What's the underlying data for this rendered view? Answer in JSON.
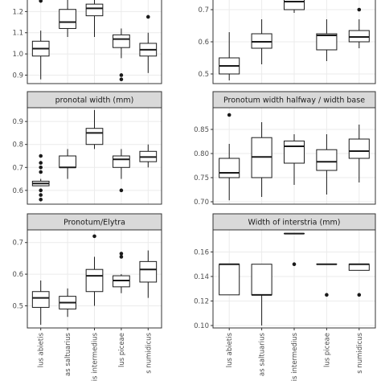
{
  "chart_data": {
    "type": "box",
    "layout": "faceted grid, 3 rows x 2 columns, shared x axis per column",
    "categories": [
      "lus abietis",
      "as saltuarius",
      "is intermedius",
      "lus piceae",
      "s numidicus"
    ],
    "panels": [
      {
        "title": "",
        "ylim": [
          0.86,
          1.3
        ],
        "yticks": [
          "0.9",
          "1.0",
          "1.1",
          "1.2"
        ],
        "ytick_values": [
          0.9,
          1.0,
          1.1,
          1.2
        ],
        "boxes": [
          {
            "min": 0.88,
            "q1": 0.99,
            "median": 1.025,
            "q3": 1.06,
            "max": 1.11,
            "outliers": [
              1.25
            ]
          },
          {
            "min": 1.08,
            "q1": 1.12,
            "median": 1.15,
            "q3": 1.21,
            "max": 1.27,
            "outliers": []
          },
          {
            "min": 1.08,
            "q1": 1.18,
            "median": 1.215,
            "q3": 1.235,
            "max": 1.27,
            "outliers": []
          },
          {
            "min": 0.98,
            "q1": 1.03,
            "median": 1.07,
            "q3": 1.09,
            "max": 1.12,
            "outliers": [
              0.9,
              0.88
            ]
          },
          {
            "min": 0.91,
            "q1": 0.99,
            "median": 1.02,
            "q3": 1.05,
            "max": 1.1,
            "outliers": [
              1.175
            ]
          }
        ]
      },
      {
        "title": "",
        "ylim": [
          0.47,
          0.76
        ],
        "yticks": [
          "0.5",
          "0.6",
          "0.7"
        ],
        "ytick_values": [
          0.5,
          0.6,
          0.7
        ],
        "boxes": [
          {
            "min": 0.48,
            "q1": 0.5,
            "median": 0.525,
            "q3": 0.55,
            "max": 0.63,
            "outliers": []
          },
          {
            "min": 0.53,
            "q1": 0.58,
            "median": 0.6,
            "q3": 0.625,
            "max": 0.67,
            "outliers": []
          },
          {
            "min": 0.69,
            "q1": 0.7,
            "median": 0.725,
            "q3": 0.76,
            "max": 0.76,
            "outliers": []
          },
          {
            "min": 0.54,
            "q1": 0.575,
            "median": 0.62,
            "q3": 0.625,
            "max": 0.67,
            "outliers": []
          },
          {
            "min": 0.58,
            "q1": 0.6,
            "median": 0.615,
            "q3": 0.635,
            "max": 0.67,
            "outliers": [
              0.7
            ]
          }
        ]
      },
      {
        "title": "pronotal width (mm)",
        "ylim": [
          0.54,
          0.96
        ],
        "yticks": [
          "0.6",
          "0.7",
          "0.8",
          "0.9"
        ],
        "ytick_values": [
          0.6,
          0.7,
          0.8,
          0.9
        ],
        "boxes": [
          {
            "min": 0.62,
            "q1": 0.62,
            "median": 0.63,
            "q3": 0.64,
            "max": 0.65,
            "outliers": [
              0.75,
              0.72,
              0.7,
              0.68,
              0.6,
              0.58,
              0.56
            ]
          },
          {
            "min": 0.65,
            "q1": 0.7,
            "median": 0.7,
            "q3": 0.75,
            "max": 0.78,
            "outliers": []
          },
          {
            "min": 0.78,
            "q1": 0.8,
            "median": 0.85,
            "q3": 0.87,
            "max": 0.95,
            "outliers": []
          },
          {
            "min": 0.65,
            "q1": 0.7,
            "median": 0.735,
            "q3": 0.75,
            "max": 0.78,
            "outliers": [
              0.6
            ]
          },
          {
            "min": 0.7,
            "q1": 0.725,
            "median": 0.745,
            "q3": 0.77,
            "max": 0.8,
            "outliers": []
          }
        ]
      },
      {
        "title": "Pronotum width halfway / width base",
        "ylim": [
          0.695,
          0.895
        ],
        "yticks": [
          "0.70",
          "0.75",
          "0.80",
          "0.85"
        ],
        "ytick_values": [
          0.7,
          0.75,
          0.8,
          0.85
        ],
        "boxes": [
          {
            "min": 0.703,
            "q1": 0.75,
            "median": 0.76,
            "q3": 0.79,
            "max": 0.82,
            "outliers": [
              0.88
            ]
          },
          {
            "min": 0.71,
            "q1": 0.75,
            "median": 0.793,
            "q3": 0.833,
            "max": 0.865,
            "outliers": []
          },
          {
            "min": 0.735,
            "q1": 0.78,
            "median": 0.815,
            "q3": 0.826,
            "max": 0.84,
            "outliers": []
          },
          {
            "min": 0.715,
            "q1": 0.765,
            "median": 0.783,
            "q3": 0.808,
            "max": 0.84,
            "outliers": []
          },
          {
            "min": 0.74,
            "q1": 0.79,
            "median": 0.805,
            "q3": 0.83,
            "max": 0.86,
            "outliers": []
          }
        ]
      },
      {
        "title": "Pronotum/Elytra",
        "ylim": [
          0.43,
          0.74
        ],
        "yticks": [
          "0.5",
          "0.6",
          "0.7"
        ],
        "ytick_values": [
          0.5,
          0.6,
          0.7
        ],
        "boxes": [
          {
            "min": 0.44,
            "q1": 0.495,
            "median": 0.525,
            "q3": 0.545,
            "max": 0.58,
            "outliers": []
          },
          {
            "min": 0.465,
            "q1": 0.49,
            "median": 0.51,
            "q3": 0.53,
            "max": 0.555,
            "outliers": []
          },
          {
            "min": 0.5,
            "q1": 0.545,
            "median": 0.595,
            "q3": 0.615,
            "max": 0.655,
            "outliers": [
              0.72
            ]
          },
          {
            "min": 0.54,
            "q1": 0.56,
            "median": 0.58,
            "q3": 0.595,
            "max": 0.6,
            "outliers": [
              0.665,
              0.655
            ]
          },
          {
            "min": 0.525,
            "q1": 0.575,
            "median": 0.615,
            "q3": 0.64,
            "max": 0.675,
            "outliers": []
          }
        ]
      },
      {
        "title": "Width of interstria (mm)",
        "ylim": [
          0.098,
          0.178
        ],
        "yticks": [
          "0.10",
          "0.12",
          "0.14",
          "0.16"
        ],
        "ytick_values": [
          0.1,
          0.12,
          0.14,
          0.16
        ],
        "boxes": [
          {
            "min": 0.125,
            "q1": 0.125,
            "median": 0.15,
            "q3": 0.15,
            "max": 0.15,
            "outliers": []
          },
          {
            "min": 0.1,
            "q1": 0.125,
            "median": 0.125,
            "q3": 0.15,
            "max": 0.15,
            "outliers": []
          },
          {
            "min": 0.175,
            "q1": 0.175,
            "median": 0.175,
            "q3": 0.175,
            "max": 0.175,
            "outliers": [
              0.15
            ]
          },
          {
            "min": 0.15,
            "q1": 0.15,
            "median": 0.15,
            "q3": 0.15,
            "max": 0.15,
            "outliers": [
              0.125
            ]
          },
          {
            "min": 0.145,
            "q1": 0.145,
            "median": 0.15,
            "q3": 0.15,
            "max": 0.15,
            "outliers": [
              0.125
            ]
          }
        ]
      }
    ],
    "grid": true,
    "legend": "none"
  },
  "colors": {
    "panel_background": "#ffffff",
    "panel_border": "#333333",
    "strip_fill": "#d9d9d9",
    "grid_major": "#ebebeb",
    "box_stroke": "#1a1a1a",
    "outlier_fill": "#1a1a1a"
  }
}
